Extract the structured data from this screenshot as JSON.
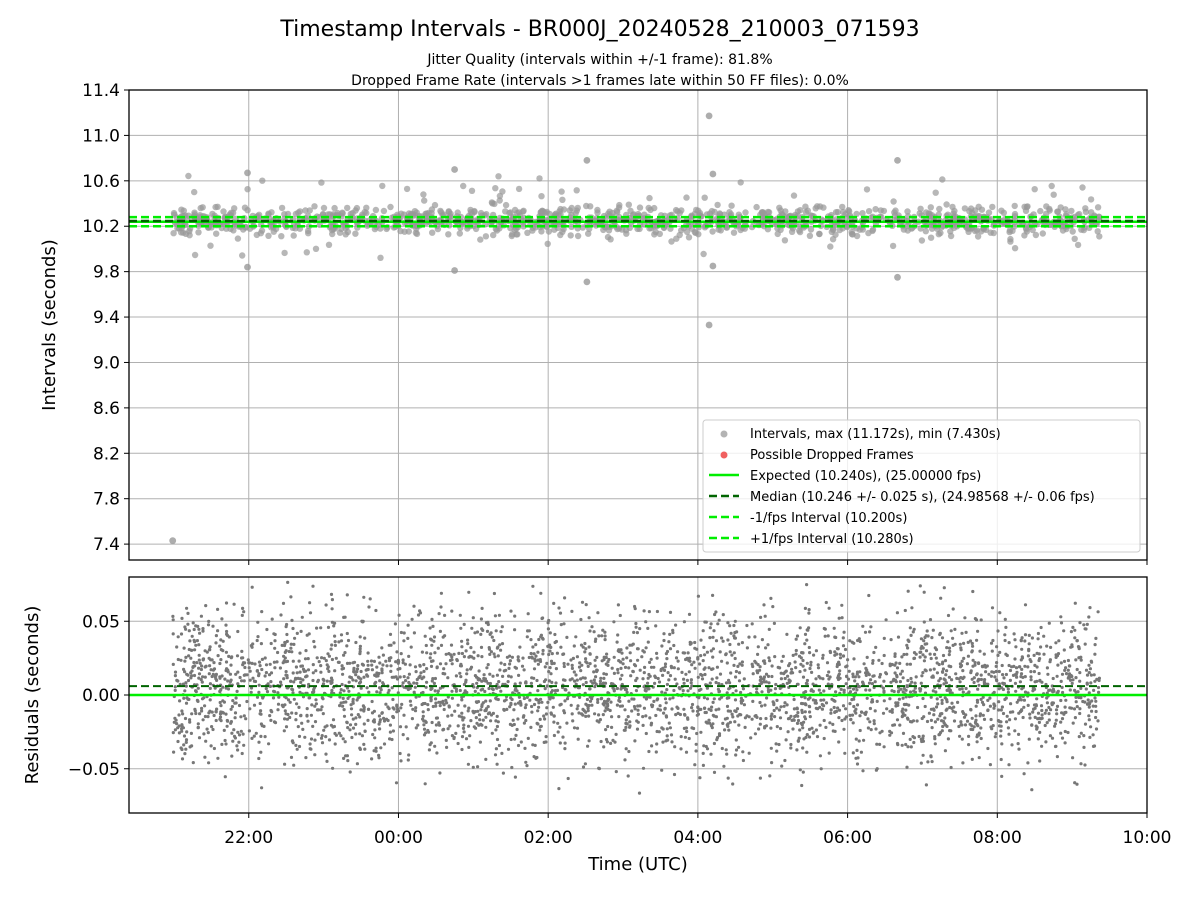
{
  "chart_data": [
    {
      "type": "scatter",
      "panel": "intervals",
      "title": "Timestamp Intervals - BR000J_20240528_210003_071593",
      "subtitle_1": "Jitter Quality (intervals within +/-1 frame): 81.8%",
      "subtitle_2": "Dropped Frame Rate (intervals >1 frames late within 50 FF files): 0.0%",
      "ylabel": "Intervals (seconds)",
      "y_ticks": [
        "7.4",
        "7.8",
        "8.2",
        "8.6",
        "9.0",
        "9.4",
        "9.8",
        "10.2",
        "10.6",
        "11.0",
        "11.4"
      ],
      "ylim": [
        7.26,
        11.4
      ],
      "grid": true,
      "legend_placement": "lower right",
      "legend": [
        {
          "label": "Intervals, max (11.172s), min (7.430s)",
          "marker": "dot",
          "color": "#999999"
        },
        {
          "label": "Possible Dropped Frames",
          "marker": "dot",
          "color": "#f06060"
        },
        {
          "label": "Expected (10.240s), (25.00000 fps)",
          "line": "solid",
          "color": "#00ee00"
        },
        {
          "label": "Median (10.246 +/- 0.025 s), (24.98568 +/- 0.06 fps)",
          "line": "dashed",
          "color": "#006400"
        },
        {
          "label": "-1/fps Interval (10.200s)",
          "line": "dashed",
          "color": "#00ee00"
        },
        {
          "label": "+1/fps Interval (10.280s)",
          "line": "dashed",
          "color": "#00ee00"
        }
      ],
      "reference_lines": {
        "expected": 10.24,
        "median": 10.246,
        "minus_1_fps": 10.2,
        "plus_1_fps": 10.28
      },
      "notable_points": [
        {
          "time": "20:59",
          "interval": 7.43
        },
        {
          "time": "04:09",
          "interval": 11.172
        },
        {
          "time": "04:09",
          "interval": 9.33
        },
        {
          "time": "04:12",
          "interval": 10.66
        },
        {
          "time": "04:12",
          "interval": 9.85
        },
        {
          "time": "06:40",
          "interval": 10.78
        },
        {
          "time": "06:40",
          "interval": 9.75
        },
        {
          "time": "02:31",
          "interval": 10.78
        },
        {
          "time": "02:31",
          "interval": 9.71
        },
        {
          "time": "21:59",
          "interval": 10.67
        },
        {
          "time": "21:59",
          "interval": 9.84
        },
        {
          "time": "00:45",
          "interval": 10.7
        },
        {
          "time": "00:45",
          "interval": 9.81
        }
      ],
      "series": [
        {
          "name": "Intervals",
          "time_range": [
            "20:59",
            "09:22"
          ],
          "typical_band": [
            10.05,
            10.45
          ],
          "center": 10.246
        }
      ]
    },
    {
      "type": "scatter",
      "panel": "residuals",
      "xlabel": "Time (UTC)",
      "ylabel": "Residuals (seconds)",
      "x_ticks": [
        "22:00",
        "00:00",
        "02:00",
        "04:00",
        "06:00",
        "08:00",
        "10:00"
      ],
      "xlim": [
        "20:24",
        "10:00"
      ],
      "y_ticks": [
        "−0.05",
        "0.00",
        "0.05"
      ],
      "ylim": [
        -0.08,
        0.08
      ],
      "grid": true,
      "reference_lines": {
        "expected": 0.0,
        "median": 0.006
      },
      "series": [
        {
          "name": "Residuals",
          "time_range": [
            "20:59",
            "09:22"
          ],
          "typical_band": [
            -0.04,
            0.05
          ],
          "center": 0.006
        }
      ]
    }
  ],
  "colors": {
    "points": "#999999",
    "residual_points": "#777777",
    "expected": "#00ee00",
    "median": "#006400",
    "grid": "#b0b0b0"
  }
}
